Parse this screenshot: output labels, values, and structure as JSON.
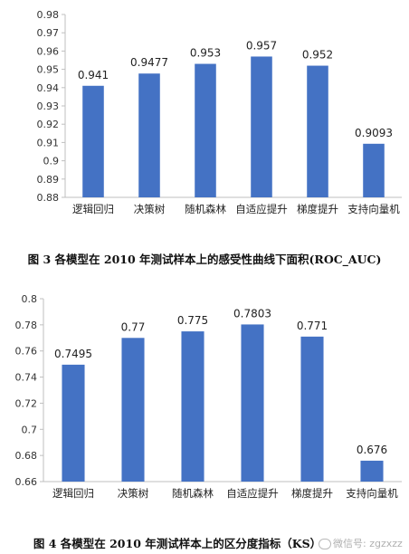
{
  "chart_data": [
    {
      "type": "bar",
      "categories": [
        "逻辑回归",
        "决策树",
        "随机森林",
        "自适应提升",
        "梯度提升",
        "支持向量机"
      ],
      "values": [
        0.941,
        0.9477,
        0.953,
        0.957,
        0.952,
        0.9093
      ],
      "value_labels": [
        "0.941",
        "0.9477",
        "0.953",
        "0.957",
        "0.952",
        "0.9093"
      ],
      "ylim": [
        0.88,
        0.98
      ],
      "yticks": [
        "0.88",
        "0.89",
        "0.9",
        "0.91",
        "0.92",
        "0.93",
        "0.94",
        "0.95",
        "0.96",
        "0.97",
        "0.98"
      ],
      "grid": false,
      "bar_color": "#4472C4",
      "caption": "图 3 各模型在 2010 年测试样本上的感受性曲线下面积(ROC_AUC)"
    },
    {
      "type": "bar",
      "categories": [
        "逻辑回归",
        "决策树",
        "随机森林",
        "自适应提升",
        "梯度提升",
        "支持向量机"
      ],
      "values": [
        0.7495,
        0.77,
        0.775,
        0.7803,
        0.771,
        0.676
      ],
      "value_labels": [
        "0.7495",
        "0.77",
        "0.775",
        "0.7803",
        "0.771",
        "0.676"
      ],
      "ylim": [
        0.66,
        0.8
      ],
      "yticks": [
        "0.66",
        "0.68",
        "0.7",
        "0.72",
        "0.74",
        "0.76",
        "0.78",
        "0.8"
      ],
      "grid": false,
      "bar_color": "#4472C4",
      "caption": "图 4 各模型在 2010 年测试样本上的区分度指标（KS）"
    }
  ],
  "watermark": "微信号: zgzxzz"
}
